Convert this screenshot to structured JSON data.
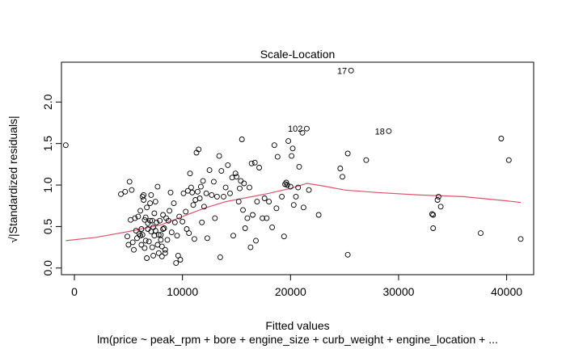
{
  "chart_data": {
    "type": "scatter",
    "title": "Scale-Location",
    "xlabel": "Fitted values",
    "subtitle": "lm(price ~ peak_rpm + bore + engine_size + curb_weight + engine_location +  ...",
    "ylabel": "√|Standardized residuals|",
    "xlim": [
      -1200,
      42500
    ],
    "ylim": [
      -0.08,
      2.48
    ],
    "x_ticks": [
      0,
      10000,
      20000,
      30000,
      40000
    ],
    "y_ticks": [
      0.0,
      0.5,
      1.0,
      1.5,
      2.0
    ],
    "x_tick_labels": [
      "0",
      "10000",
      "20000",
      "30000",
      "40000"
    ],
    "y_tick_labels": [
      "0.0",
      "0.5",
      "1.0",
      "1.5",
      "2.0"
    ],
    "grid": false,
    "legend": "none",
    "point_color": "#000000",
    "smooth_color": "#df536b",
    "points": [
      [
        -800,
        1.48
      ],
      [
        4300,
        0.89
      ],
      [
        4700,
        0.92
      ],
      [
        4900,
        0.38
      ],
      [
        5000,
        0.28
      ],
      [
        5100,
        1.04
      ],
      [
        5200,
        0.58
      ],
      [
        5300,
        0.94
      ],
      [
        5400,
        0.31
      ],
      [
        5500,
        0.22
      ],
      [
        5600,
        0.6
      ],
      [
        5700,
        0.45
      ],
      [
        5800,
        0.36
      ],
      [
        5900,
        0.62
      ],
      [
        6000,
        0.41
      ],
      [
        6100,
        0.39
      ],
      [
        6100,
        0.69
      ],
      [
        6200,
        0.47
      ],
      [
        6200,
        0.28
      ],
      [
        6300,
        0.4
      ],
      [
        6300,
        0.86
      ],
      [
        6400,
        0.88
      ],
      [
        6400,
        0.82
      ],
      [
        6500,
        0.58
      ],
      [
        6500,
        0.24
      ],
      [
        6600,
        0.61
      ],
      [
        6600,
        0.33
      ],
      [
        6700,
        0.73
      ],
      [
        6700,
        0.12
      ],
      [
        6800,
        0.47
      ],
      [
        6800,
        0.54
      ],
      [
        6900,
        0.32
      ],
      [
        7000,
        0.57
      ],
      [
        7000,
        0.78
      ],
      [
        7100,
        0.44
      ],
      [
        7100,
        0.88
      ],
      [
        7200,
        0.57
      ],
      [
        7200,
        0.25
      ],
      [
        7300,
        0.49
      ],
      [
        7300,
        0.15
      ],
      [
        7400,
        0.39
      ],
      [
        7400,
        0.66
      ],
      [
        7500,
        0.45
      ],
      [
        7500,
        0.8
      ],
      [
        7600,
        0.55
      ],
      [
        7700,
        0.98
      ],
      [
        7700,
        0.28
      ],
      [
        7800,
        0.4
      ],
      [
        7800,
        0.18
      ],
      [
        7900,
        0.57
      ],
      [
        8000,
        0.4
      ],
      [
        8000,
        0.34
      ],
      [
        8100,
        0.14
      ],
      [
        8100,
        0.26
      ],
      [
        8200,
        0.47
      ],
      [
        8200,
        0.64
      ],
      [
        8300,
        0.48
      ],
      [
        8400,
        0.22
      ],
      [
        8400,
        0.18
      ],
      [
        8500,
        0.6
      ],
      [
        8600,
        0.34
      ],
      [
        8700,
        0.57
      ],
      [
        8800,
        0.69
      ],
      [
        8900,
        0.91
      ],
      [
        9000,
        0.43
      ],
      [
        9200,
        0.78
      ],
      [
        9300,
        0.55
      ],
      [
        9400,
        0.06
      ],
      [
        9500,
        0.39
      ],
      [
        9600,
        0.15
      ],
      [
        9700,
        0.62
      ],
      [
        9800,
        0.1
      ],
      [
        10000,
        0.56
      ],
      [
        10100,
        0.9
      ],
      [
        10300,
        0.68
      ],
      [
        10400,
        0.47
      ],
      [
        10500,
        0.93
      ],
      [
        10600,
        0.42
      ],
      [
        10700,
        1.14
      ],
      [
        10800,
        0.97
      ],
      [
        10900,
        0.91
      ],
      [
        11000,
        0.76
      ],
      [
        11100,
        0.35
      ],
      [
        11200,
        0.82
      ],
      [
        11300,
        1.39
      ],
      [
        11400,
        0.92
      ],
      [
        11500,
        1.43
      ],
      [
        11600,
        0.84
      ],
      [
        11700,
        0.98
      ],
      [
        11800,
        0.55
      ],
      [
        11900,
        1.05
      ],
      [
        12000,
        0.74
      ],
      [
        12200,
        0.9
      ],
      [
        12300,
        0.36
      ],
      [
        12500,
        1.18
      ],
      [
        12700,
        0.88
      ],
      [
        12900,
        1.04
      ],
      [
        13000,
        0.6
      ],
      [
        13200,
        0.86
      ],
      [
        13400,
        1.35
      ],
      [
        13500,
        0.13
      ],
      [
        13600,
        1.17
      ],
      [
        13800,
        0.86
      ],
      [
        14000,
        0.97
      ],
      [
        14200,
        1.24
      ],
      [
        14400,
        0.9
      ],
      [
        14600,
        1.09
      ],
      [
        14700,
        0.39
      ],
      [
        14900,
        1.14
      ],
      [
        15000,
        1.1
      ],
      [
        15200,
        0.8
      ],
      [
        15300,
        0.96
      ],
      [
        15400,
        1.05
      ],
      [
        15500,
        1.55
      ],
      [
        15600,
        0.7
      ],
      [
        15700,
        1.02
      ],
      [
        15800,
        0.48
      ],
      [
        16000,
        0.6
      ],
      [
        16200,
        0.97
      ],
      [
        16300,
        0.25
      ],
      [
        16400,
        1.26
      ],
      [
        16500,
        0.64
      ],
      [
        16700,
        1.27
      ],
      [
        16800,
        0.33
      ],
      [
        16900,
        0.8
      ],
      [
        17100,
        1.21
      ],
      [
        17400,
        0.6
      ],
      [
        17600,
        0.84
      ],
      [
        17800,
        0.6
      ],
      [
        18000,
        0.8
      ],
      [
        18300,
        0.49
      ],
      [
        18500,
        1.48
      ],
      [
        18700,
        0.72
      ],
      [
        18800,
        1.34
      ],
      [
        19200,
        0.86
      ],
      [
        19400,
        0.38
      ],
      [
        19500,
        1.01
      ],
      [
        19600,
        1.03
      ],
      [
        19700,
        1.0
      ],
      [
        19800,
        1.53
      ],
      [
        20000,
        0.98
      ],
      [
        20100,
        1.35
      ],
      [
        20200,
        1.44
      ],
      [
        20300,
        0.76
      ],
      [
        20500,
        0.86
      ],
      [
        20700,
        0.97
      ],
      [
        20800,
        1.22
      ],
      [
        21100,
        1.63
      ],
      [
        21200,
        0.73
      ],
      [
        21500,
        1.68
      ],
      [
        21700,
        0.94
      ],
      [
        22600,
        0.64
      ],
      [
        24600,
        1.2
      ],
      [
        24800,
        1.1
      ],
      [
        25300,
        0.16
      ],
      [
        25300,
        1.38
      ],
      [
        25600,
        2.38
      ],
      [
        27000,
        1.3
      ],
      [
        29100,
        1.65
      ],
      [
        33100,
        0.65
      ],
      [
        33200,
        0.48
      ],
      [
        33200,
        0.64
      ],
      [
        33600,
        0.82
      ],
      [
        33700,
        0.86
      ],
      [
        33900,
        0.74
      ],
      [
        37600,
        0.42
      ],
      [
        39500,
        1.56
      ],
      [
        40200,
        1.3
      ],
      [
        41300,
        0.35
      ]
    ],
    "labeled_points": [
      {
        "label": "17",
        "x": 25600,
        "y": 2.38
      },
      {
        "label": "102",
        "x": 21500,
        "y": 1.68
      },
      {
        "label": "18",
        "x": 29100,
        "y": 1.65
      }
    ],
    "smooth_line": {
      "x": [
        -800,
        2000,
        5000,
        8000,
        10000,
        12000,
        14000,
        16000,
        18000,
        20000,
        21500,
        23000,
        25000,
        28000,
        32000,
        36000,
        40000,
        41300
      ],
      "y": [
        0.33,
        0.37,
        0.44,
        0.52,
        0.62,
        0.72,
        0.8,
        0.85,
        0.9,
        0.96,
        1.02,
        0.99,
        0.94,
        0.91,
        0.88,
        0.86,
        0.81,
        0.79
      ]
    }
  }
}
